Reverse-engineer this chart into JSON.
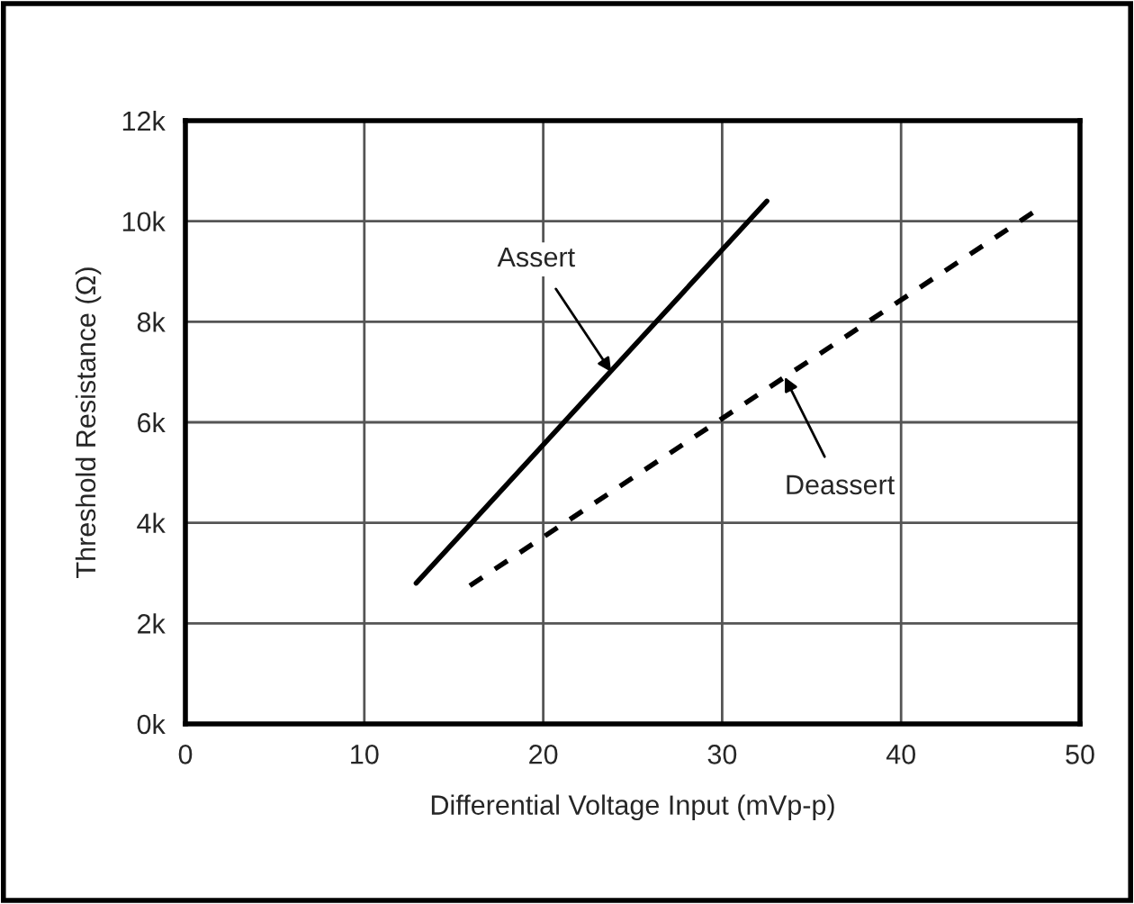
{
  "chart_data": {
    "type": "line",
    "xlabel": "Differential Voltage Input (mVp-p)",
    "ylabel": "Threshold Resistance (Ω)",
    "series": [
      {
        "color": "#000000",
        "line_style": "solid",
        "x": [
          12.9,
          32.5
        ],
        "values": [
          2800,
          10400
        ]
      },
      {
        "color": "#000000",
        "line_style": "dashed",
        "x": [
          15.9,
          47.7
        ],
        "values": [
          2750,
          10250
        ]
      }
    ],
    "annotations": [
      {
        "text": "Assert",
        "x": 23.8,
        "y": 7000
      },
      {
        "text": "Deassert",
        "x": 33.5,
        "y": 6900
      }
    ],
    "xlim": [
      0,
      50
    ],
    "xticks": [
      0,
      10,
      20,
      30,
      40,
      50
    ],
    "ylim": [
      0,
      12000
    ],
    "yticks": [
      {
        "value": 0,
        "label": "0k"
      },
      {
        "value": 2000,
        "label": "2k"
      },
      {
        "value": 4000,
        "label": "4k"
      },
      {
        "value": 6000,
        "label": "6k"
      },
      {
        "value": 8000,
        "label": "8k"
      },
      {
        "value": 10000,
        "label": "10k"
      },
      {
        "value": 12000,
        "label": "12k"
      }
    ],
    "grid": true,
    "legend": false,
    "marker": "none"
  }
}
